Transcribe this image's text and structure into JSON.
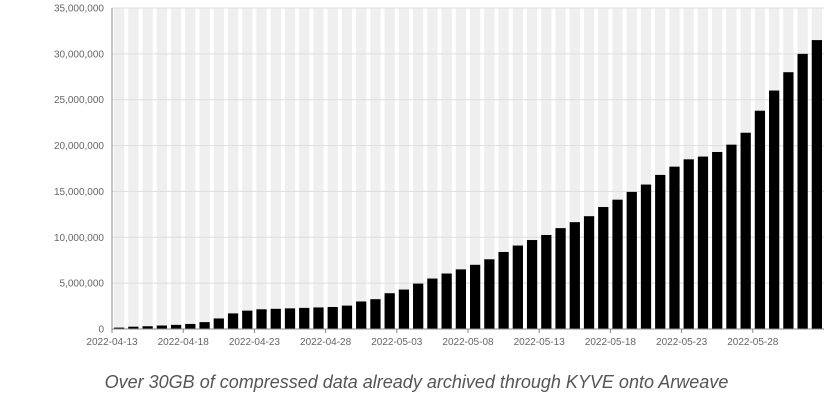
{
  "caption": "Over 30GB of compressed data already archived through KYVE onto Arweave",
  "colors": {
    "bar": "#000000",
    "band": "#efefef",
    "grid": "#dddddd",
    "axis": "#888888",
    "text": "#666666"
  },
  "chart_data": {
    "type": "bar",
    "title": "",
    "xlabel": "",
    "ylabel": "",
    "ylim": [
      0,
      35000000
    ],
    "yticks": [
      0,
      5000000,
      10000000,
      15000000,
      20000000,
      25000000,
      30000000,
      35000000
    ],
    "ytick_labels": [
      "0",
      "5,000,000",
      "10,000,000",
      "15,000,000",
      "20,000,000",
      "25,000,000",
      "30,000,000",
      "35,000,000"
    ],
    "grid": true,
    "categories": [
      "2022-04-13",
      "2022-04-14",
      "2022-04-15",
      "2022-04-16",
      "2022-04-17",
      "2022-04-18",
      "2022-04-19",
      "2022-04-20",
      "2022-04-21",
      "2022-04-22",
      "2022-04-23",
      "2022-04-24",
      "2022-04-25",
      "2022-04-26",
      "2022-04-27",
      "2022-04-28",
      "2022-04-29",
      "2022-04-30",
      "2022-05-01",
      "2022-05-02",
      "2022-05-03",
      "2022-05-04",
      "2022-05-05",
      "2022-05-06",
      "2022-05-07",
      "2022-05-08",
      "2022-05-09",
      "2022-05-10",
      "2022-05-11",
      "2022-05-12",
      "2022-05-13",
      "2022-05-14",
      "2022-05-15",
      "2022-05-16",
      "2022-05-17",
      "2022-05-18",
      "2022-05-19",
      "2022-05-20",
      "2022-05-21",
      "2022-05-22",
      "2022-05-23",
      "2022-05-24",
      "2022-05-25",
      "2022-05-26",
      "2022-05-27",
      "2022-05-28",
      "2022-05-29",
      "2022-05-30",
      "2022-05-31",
      "2022-06-01"
    ],
    "values": [
      150000,
      250000,
      300000,
      380000,
      450000,
      550000,
      750000,
      1150000,
      1700000,
      2000000,
      2150000,
      2200000,
      2250000,
      2300000,
      2350000,
      2400000,
      2550000,
      3000000,
      3250000,
      3900000,
      4300000,
      4950000,
      5500000,
      6050000,
      6500000,
      7000000,
      7600000,
      8400000,
      9100000,
      9700000,
      10250000,
      11000000,
      11650000,
      12300000,
      13300000,
      14100000,
      14950000,
      15750000,
      16800000,
      17700000,
      18500000,
      18800000,
      19300000,
      20100000,
      21400000,
      23800000,
      26000000,
      28000000,
      30000000,
      31500000
    ],
    "xtick_labels": [
      "2022-04-13",
      "2022-04-18",
      "2022-04-23",
      "2022-04-28",
      "2022-05-03",
      "2022-05-08",
      "2022-05-13",
      "2022-05-18",
      "2022-05-23",
      "2022-05-28"
    ]
  }
}
